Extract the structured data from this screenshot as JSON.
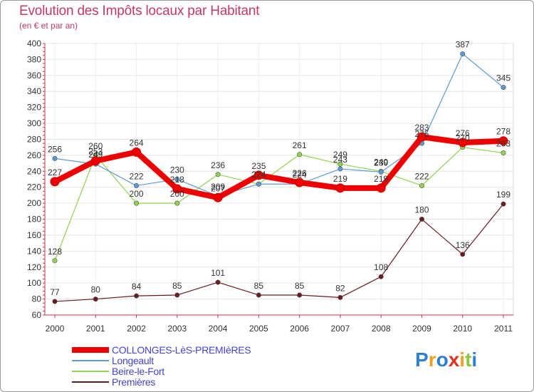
{
  "chart_data": {
    "type": "line",
    "title": "Evolution des Impôts locaux par Habitant",
    "subtitle": "(en € et par an)",
    "xlabel": "",
    "ylabel": "",
    "ylim": [
      60,
      400
    ],
    "yticks": [
      60,
      80,
      100,
      120,
      140,
      160,
      180,
      200,
      220,
      240,
      260,
      280,
      300,
      320,
      340,
      360,
      380,
      400
    ],
    "categories": [
      "2000",
      "2001",
      "2002",
      "2003",
      "2004",
      "2005",
      "2006",
      "2007",
      "2008",
      "2009",
      "2010",
      "2011"
    ],
    "grid": true,
    "series": [
      {
        "name": "COLLONGES-LèS-PREMIèRES",
        "color": "#ee0000",
        "values": [
          227,
          253,
          264,
          218,
          207,
          235,
          226,
          219,
          219,
          283,
          276,
          278
        ]
      },
      {
        "name": "Longeault",
        "color": "#5b9bd5",
        "values": [
          256,
          249,
          222,
          230,
          209,
          224,
          224,
          243,
          239,
          275,
          387,
          345
        ]
      },
      {
        "name": "Beire-le-Fort",
        "color": "#8ed44e",
        "values": [
          128,
          260,
          200,
          200,
          236,
          224,
          261,
          249,
          240,
          222,
          270,
          263
        ]
      },
      {
        "name": "Premières",
        "color": "#6b1a1f",
        "values": [
          77,
          80,
          84,
          85,
          101,
          85,
          85,
          82,
          108,
          180,
          136,
          199
        ]
      }
    ]
  },
  "logo": {
    "letters": [
      "P",
      "r",
      "o",
      "x",
      "i",
      "t",
      "i"
    ],
    "colors": [
      "#2b7fd4",
      "#f0a020",
      "#2b7fd4",
      "#e03020",
      "#f0a020",
      "#8cc63f",
      "#2b7fd4"
    ]
  }
}
